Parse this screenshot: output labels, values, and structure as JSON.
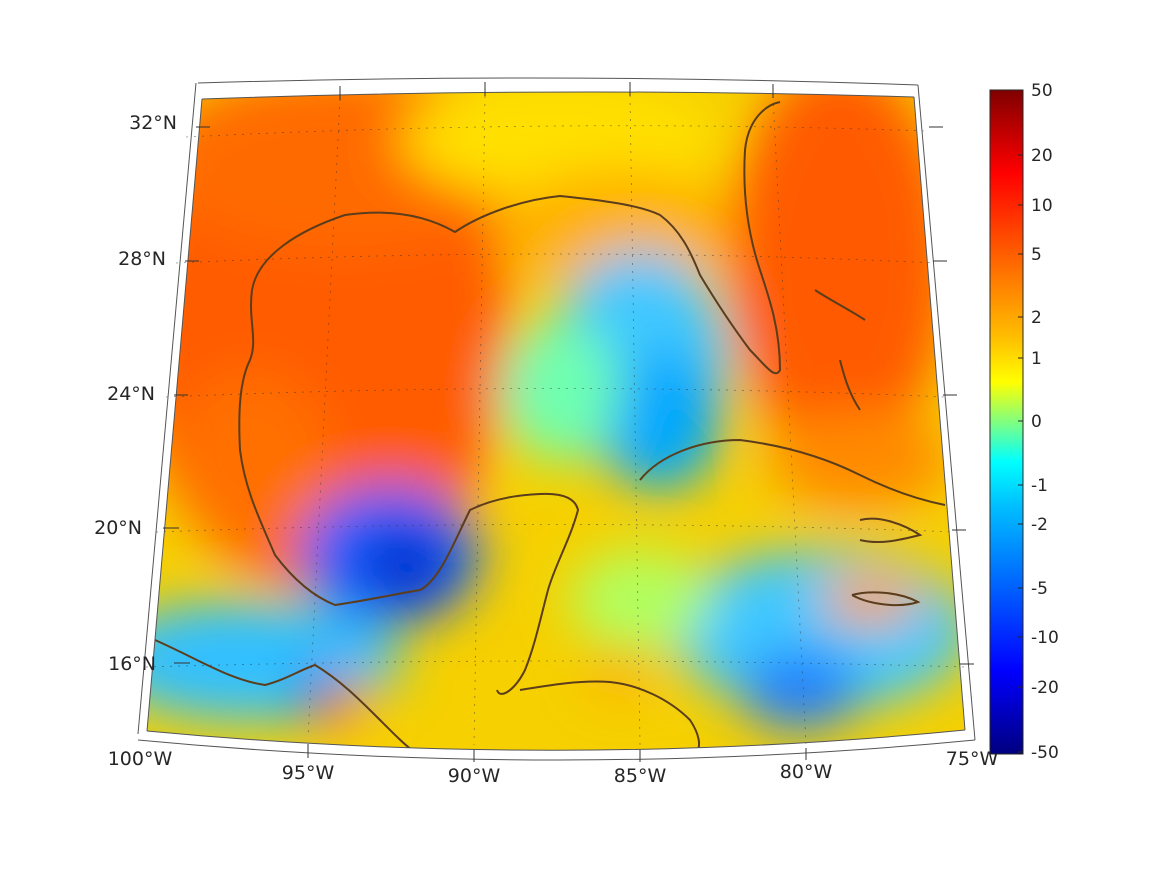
{
  "map": {
    "lon_labels": [
      "100°W",
      "95°W",
      "90°W",
      "85°W",
      "80°W",
      "75°W"
    ],
    "lat_labels": [
      "16°N",
      "20°N",
      "24°N",
      "28°N",
      "32°N"
    ],
    "lon_range": [
      -100,
      -75
    ],
    "lat_range": [
      14,
      33
    ],
    "projection": "conic",
    "graticule": "dotted",
    "coastline_color": "#5b3d1c"
  },
  "colorbar": {
    "colormap": "jet",
    "tick_labels": [
      "50",
      "20",
      "10",
      "5",
      "2",
      "1",
      "0",
      "-1",
      "-2",
      "-5",
      "-10",
      "-20",
      "-50"
    ],
    "range": [
      -50,
      50
    ]
  },
  "colors": {
    "frame": "#262626",
    "positive_high": "#ff5a00",
    "neutral": "#ffff00",
    "negative_low": "#0000c8"
  }
}
